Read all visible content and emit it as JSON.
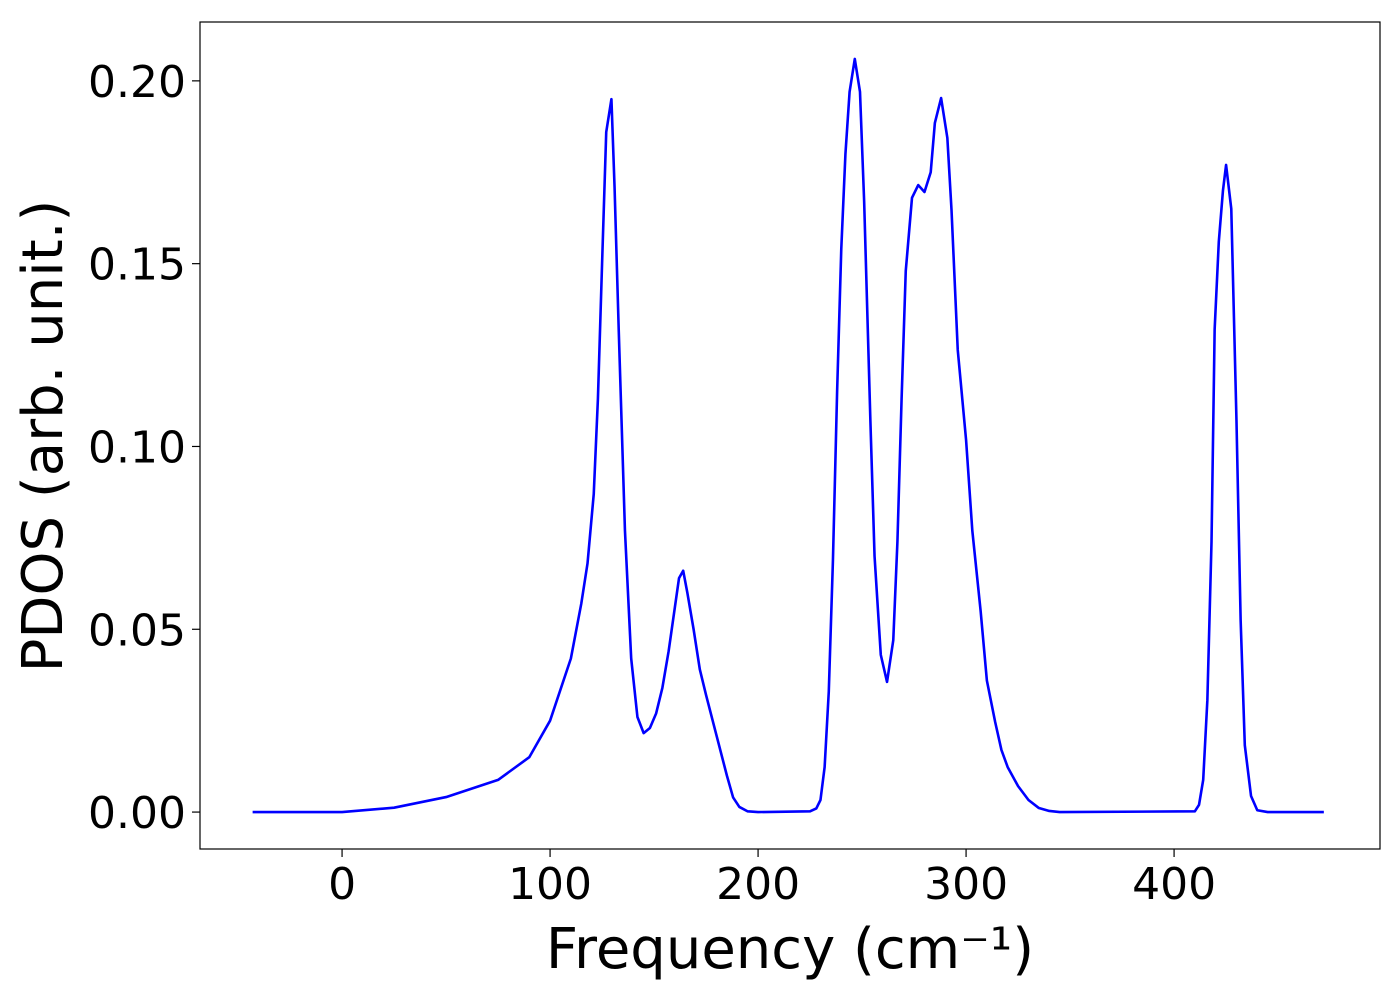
{
  "chart_data": {
    "type": "line",
    "xlabel": "Frequency (cm⁻¹)",
    "ylabel": "PDOS (arb. unit.)",
    "xlim": [
      -68.3,
      499
    ],
    "ylim": [
      -0.0101,
      0.2161
    ],
    "xticks": [
      0,
      100,
      200,
      300,
      400
    ],
    "yticks": [
      {
        "value": 0,
        "label": "0.00"
      },
      {
        "value": 0.05,
        "label": "0.05"
      },
      {
        "value": 0.1,
        "label": "0.10"
      },
      {
        "value": 0.15,
        "label": "0.15"
      },
      {
        "value": 0.2,
        "label": "0.20"
      }
    ],
    "grid": false,
    "series": [
      {
        "color": "#0000ff",
        "x": [
          -43,
          0,
          25,
          50,
          75,
          90,
          100,
          110,
          115,
          118,
          121,
          123,
          125,
          127,
          129.5,
          131,
          133,
          136,
          139,
          142,
          145,
          148,
          151,
          154,
          157,
          160,
          162,
          164,
          166,
          169,
          172,
          175,
          180,
          185,
          188,
          191,
          195,
          200,
          225,
          228,
          230,
          232,
          234,
          236,
          238,
          240,
          242,
          244,
          246.5,
          249,
          251,
          254,
          256,
          259,
          262,
          265,
          267,
          269,
          271,
          274,
          277,
          280,
          283,
          285,
          288,
          291,
          293,
          296,
          300,
          303,
          307,
          310,
          314,
          317,
          320,
          325,
          330,
          335,
          340,
          345,
          410,
          412,
          414,
          416,
          418,
          419.5,
          421.5,
          423.5,
          425,
          427.5,
          430,
          432,
          434,
          437,
          440,
          445,
          472
        ],
        "values": [
          0,
          0,
          0.0012,
          0.0041,
          0.0088,
          0.015,
          0.025,
          0.042,
          0.057,
          0.068,
          0.087,
          0.113,
          0.15,
          0.186,
          0.195,
          0.171,
          0.132,
          0.077,
          0.042,
          0.026,
          0.0216,
          0.023,
          0.027,
          0.034,
          0.044,
          0.056,
          0.064,
          0.066,
          0.06,
          0.05,
          0.039,
          0.032,
          0.021,
          0.01,
          0.004,
          0.0014,
          0.0002,
          0,
          0.0002,
          0.001,
          0.0033,
          0.0123,
          0.033,
          0.069,
          0.115,
          0.154,
          0.18,
          0.197,
          0.206,
          0.197,
          0.167,
          0.107,
          0.07,
          0.043,
          0.0356,
          0.047,
          0.074,
          0.113,
          0.148,
          0.168,
          0.1715,
          0.1696,
          0.175,
          0.1885,
          0.1953,
          0.1844,
          0.1647,
          0.1264,
          0.1018,
          0.077,
          0.055,
          0.036,
          0.0246,
          0.017,
          0.0123,
          0.0071,
          0.0033,
          0.0011,
          0.0003,
          0,
          0.0002,
          0.002,
          0.0088,
          0.0306,
          0.074,
          0.132,
          0.156,
          0.17,
          0.177,
          0.165,
          0.107,
          0.0525,
          0.0183,
          0.0044,
          0.0005,
          0,
          0
        ]
      }
    ]
  }
}
